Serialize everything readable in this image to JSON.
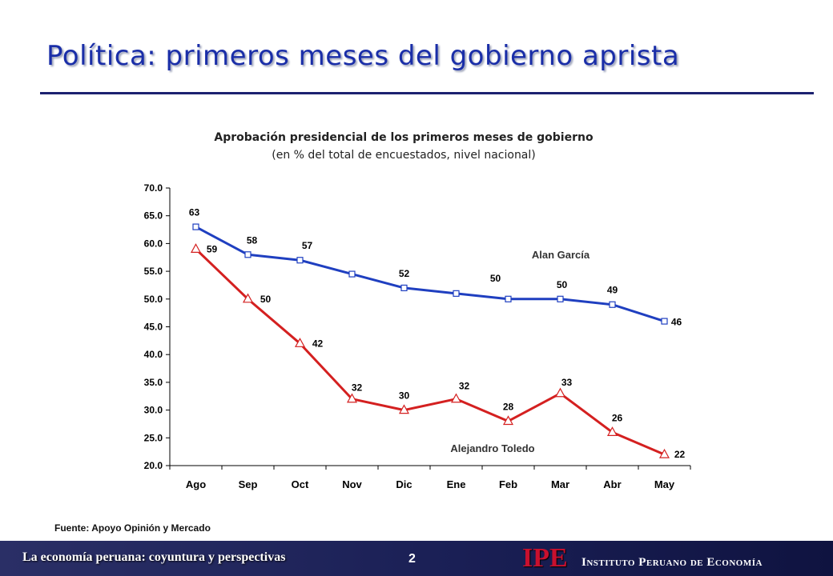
{
  "slide": {
    "title": "Política: primeros meses del gobierno aprista",
    "source": "Fuente: Apoyo Opinión y Mercado",
    "footer_text": "La economía peruana: coyuntura y perspectivas",
    "page_number": "2",
    "logo_abbr": "IPE",
    "logo_name": "Instituto Peruano de Economía",
    "colors": {
      "title": "#1a2ea8",
      "rule": "#1c2170",
      "footer": "#1a1f55",
      "logo": "#c8102e"
    }
  },
  "chart_data": {
    "type": "line",
    "title": "Aprobación presidencial de los primeros meses de gobierno",
    "subtitle": "(en % del total de encuestados, nivel nacional)",
    "categories": [
      "Ago",
      "Sep",
      "Oct",
      "Nov",
      "Dic",
      "Ene",
      "Feb",
      "Mar",
      "Abr",
      "May"
    ],
    "ylim": [
      20,
      70
    ],
    "yticks": [
      "20.0",
      "25.0",
      "30.0",
      "35.0",
      "40.0",
      "45.0",
      "50.0",
      "55.0",
      "60.0",
      "65.0",
      "70.0"
    ],
    "grid": false,
    "series": [
      {
        "name": "Alan García",
        "color": "#1f3fc0",
        "marker": "square",
        "values": [
          63,
          58,
          57,
          54.5,
          52,
          51,
          50,
          50,
          49,
          46
        ],
        "labels": [
          "63",
          "58",
          "57",
          "",
          "52",
          "",
          "50",
          "50",
          "49",
          "46"
        ]
      },
      {
        "name": "Alejandro Toledo",
        "color": "#d42020",
        "marker": "triangle",
        "values": [
          59,
          50,
          42,
          32,
          30,
          32,
          28,
          33,
          26,
          22
        ],
        "labels": [
          "59",
          "50",
          "42",
          "32",
          "30",
          "32",
          "28",
          "33",
          "26",
          "22"
        ]
      }
    ]
  }
}
